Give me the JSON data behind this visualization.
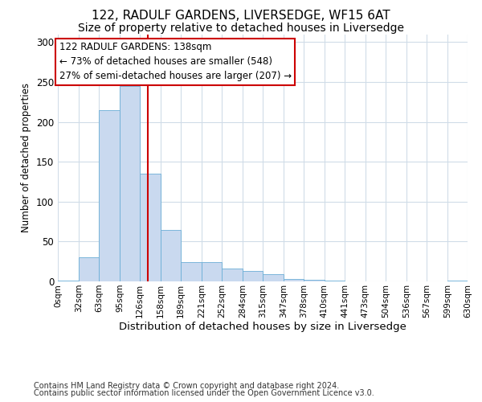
{
  "title1": "122, RADULF GARDENS, LIVERSEDGE, WF15 6AT",
  "title2": "Size of property relative to detached houses in Liversedge",
  "xlabel": "Distribution of detached houses by size in Liversedge",
  "ylabel": "Number of detached properties",
  "bin_edges": [
    0,
    32,
    63,
    95,
    126,
    158,
    189,
    221,
    252,
    284,
    315,
    347,
    378,
    410,
    441,
    473,
    504,
    536,
    567,
    599,
    630
  ],
  "bar_heights": [
    1,
    30,
    215,
    245,
    135,
    65,
    24,
    24,
    16,
    13,
    9,
    3,
    2,
    1,
    0,
    0,
    0,
    0,
    0,
    1
  ],
  "bar_color": "#c9d9ef",
  "bar_edgecolor": "#6baed6",
  "vline_x": 138,
  "vline_color": "#cc0000",
  "annotation_text": "122 RADULF GARDENS: 138sqm\n← 73% of detached houses are smaller (548)\n27% of semi-detached houses are larger (207) →",
  "annotation_box_color": "#ffffff",
  "annotation_box_edgecolor": "#cc0000",
  "annotation_fontsize": 8.5,
  "ylim": [
    0,
    310
  ],
  "yticks": [
    0,
    50,
    100,
    150,
    200,
    250,
    300
  ],
  "footer1": "Contains HM Land Registry data © Crown copyright and database right 2024.",
  "footer2": "Contains public sector information licensed under the Open Government Licence v3.0.",
  "bg_color": "#ffffff",
  "plot_bg_color": "#ffffff",
  "grid_color": "#d0dce8",
  "title1_fontsize": 11,
  "title2_fontsize": 10,
  "xlabel_fontsize": 9.5,
  "ylabel_fontsize": 8.5,
  "footer_fontsize": 7.0
}
